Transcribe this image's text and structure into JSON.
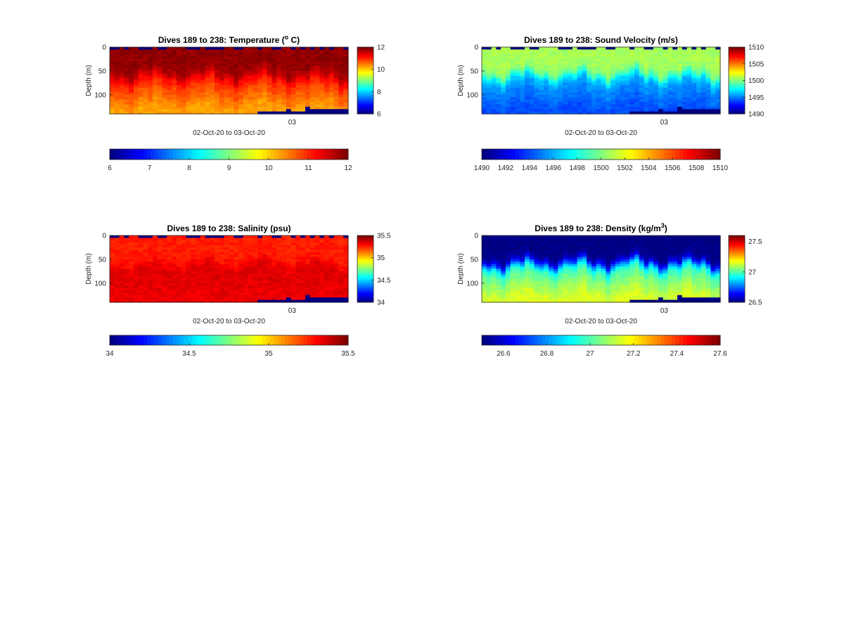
{
  "chart_data": [
    {
      "type": "heatmap",
      "title": "Dives 189 to 238: Temperature (",
      "title_unit_sup": "o",
      "title_unit_tail": " C)",
      "ylabel": "Depth (m)",
      "xlabel": "02-Oct-20 to 03-Oct-20",
      "x_tick_labels": [
        "03"
      ],
      "y_tick_labels": [
        "0",
        "50",
        "100"
      ],
      "y_ticks": [
        0,
        50,
        100
      ],
      "ylim": [
        0,
        140
      ],
      "y_reversed": true,
      "dives": [
        189,
        238
      ],
      "colormap": "jet",
      "clim": [
        6,
        12
      ],
      "side_colorbar_ticks": [
        "12",
        "10",
        "8",
        "6"
      ],
      "side_colorbar_tick_values": [
        12,
        10,
        8,
        6
      ],
      "bottom_colorbar_ticks": [
        "6",
        "7",
        "8",
        "9",
        "10",
        "11",
        "12"
      ],
      "bottom_colorbar_tick_values": [
        6,
        7,
        8,
        9,
        10,
        11,
        12
      ],
      "profile": {
        "top": 11.9,
        "bottom": 10.3
      },
      "profile_shape": "warm-mixed-layer-over-cooler-deep"
    },
    {
      "type": "heatmap",
      "title": "Dives 189 to 238: Sound Velocity (m/s)",
      "title_unit_sup": "",
      "title_unit_tail": "",
      "ylabel": "Depth (m)",
      "xlabel": "02-Oct-20 to 03-Oct-20",
      "x_tick_labels": [
        "03"
      ],
      "y_tick_labels": [
        "0",
        "50",
        "100"
      ],
      "y_ticks": [
        0,
        50,
        100
      ],
      "ylim": [
        0,
        140
      ],
      "y_reversed": true,
      "dives": [
        189,
        238
      ],
      "colormap": "jet",
      "clim": [
        1490,
        1510
      ],
      "side_colorbar_ticks": [
        "1510",
        "1505",
        "1500",
        "1495",
        "1490"
      ],
      "side_colorbar_tick_values": [
        1510,
        1505,
        1500,
        1495,
        1490
      ],
      "bottom_colorbar_ticks": [
        "1490",
        "1492",
        "1494",
        "1496",
        "1498",
        "1500",
        "1502",
        "1504",
        "1506",
        "1508",
        "1510"
      ],
      "bottom_colorbar_tick_values": [
        1490,
        1492,
        1494,
        1496,
        1498,
        1500,
        1502,
        1504,
        1506,
        1508,
        1510
      ],
      "profile": {
        "top": 1500.8,
        "bottom": 1494.0
      },
      "profile_shape": "fast-mixed-layer-over-slow-deep"
    },
    {
      "type": "heatmap",
      "title": "Dives 189 to 238: Salinity (psu)",
      "title_unit_sup": "",
      "title_unit_tail": "",
      "ylabel": "Depth (m)",
      "xlabel": "02-Oct-20 to 03-Oct-20",
      "x_tick_labels": [
        "03"
      ],
      "y_tick_labels": [
        "0",
        "50",
        "100"
      ],
      "y_ticks": [
        0,
        50,
        100
      ],
      "ylim": [
        0,
        140
      ],
      "y_reversed": true,
      "dives": [
        189,
        238
      ],
      "colormap": "jet",
      "clim": [
        34,
        35.5
      ],
      "side_colorbar_ticks": [
        "35.5",
        "35",
        "34.5",
        "34"
      ],
      "side_colorbar_tick_values": [
        35.5,
        35,
        34.5,
        34
      ],
      "bottom_colorbar_ticks": [
        "34",
        "34.5",
        "35",
        "35.5"
      ],
      "bottom_colorbar_tick_values": [
        34,
        34.5,
        35,
        35.5
      ],
      "profile": {
        "top": 35.27,
        "bottom": 35.37
      },
      "profile_shape": "fresher-top-over-saltier-deep"
    },
    {
      "type": "heatmap",
      "title": "Dives 189 to 238: Density (kg/m",
      "title_unit_sup": "3",
      "title_unit_tail": ")",
      "ylabel": "Depth (m)",
      "xlabel": "02-Oct-20 to 03-Oct-20",
      "x_tick_labels": [
        "03"
      ],
      "y_tick_labels": [
        "0",
        "50",
        "100"
      ],
      "y_ticks": [
        0,
        50,
        100
      ],
      "ylim": [
        0,
        140
      ],
      "y_reversed": true,
      "dives": [
        189,
        238
      ],
      "colormap": "jet",
      "clim": [
        26.5,
        27.6
      ],
      "side_colorbar_ticks": [
        "27.5",
        "27",
        "26.5"
      ],
      "side_colorbar_tick_values": [
        27.5,
        27,
        26.5
      ],
      "bottom_colorbar_ticks": [
        "26.6",
        "26.8",
        "27",
        "27.2",
        "27.4",
        "27.6"
      ],
      "bottom_colorbar_tick_values": [
        26.6,
        26.8,
        27,
        27.2,
        27.4,
        27.6
      ],
      "profile": {
        "top": 26.5,
        "bottom": 27.15
      },
      "profile_shape": "light-mixed-layer-over-dense-deep"
    }
  ]
}
